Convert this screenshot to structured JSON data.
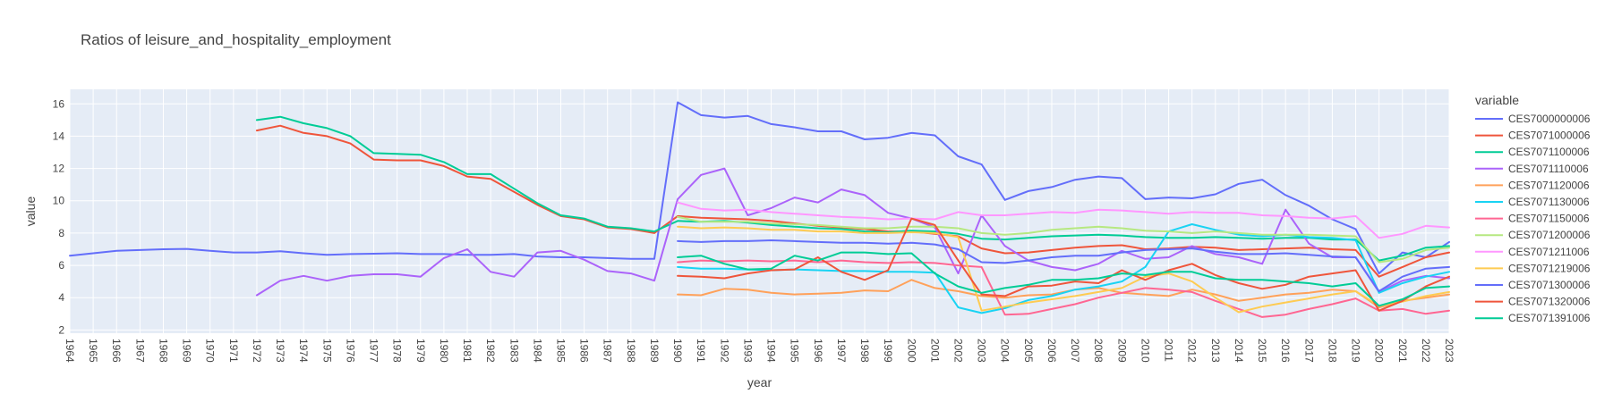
{
  "chart_data": {
    "type": "line",
    "title": "Ratios of leisure_and_hospitality_employment",
    "xlabel": "year",
    "ylabel": "value",
    "xlim": [
      1964,
      2023
    ],
    "ylim": [
      1.8,
      16.9
    ],
    "yticks": [
      2,
      4,
      6,
      8,
      10,
      12,
      14,
      16
    ],
    "grid": true,
    "legend": {
      "title": "variable",
      "placement": "right"
    },
    "series": [
      {
        "name": "CES7000000006",
        "color": "#636efa",
        "x": [
          1964,
          1965,
          1966,
          1967,
          1968,
          1969,
          1970,
          1971,
          1972,
          1973,
          1974,
          1975,
          1976,
          1977,
          1978,
          1979,
          1980,
          1981,
          1982,
          1983,
          1984,
          1985,
          1986,
          1987,
          1988,
          1989,
          1990,
          1991,
          1992,
          1993,
          1994,
          1995,
          1996,
          1997,
          1998,
          1999,
          2000,
          2001,
          2002,
          2003,
          2004,
          2005,
          2006,
          2007,
          2008,
          2009,
          2010,
          2011,
          2012,
          2013,
          2014,
          2015,
          2016,
          2017,
          2018,
          2019,
          2020,
          2021,
          2022,
          2023
        ],
        "y": [
          6.6,
          6.75,
          6.9,
          6.95,
          7.0,
          7.02,
          6.9,
          6.8,
          6.8,
          6.88,
          6.75,
          6.65,
          6.7,
          6.72,
          6.75,
          6.7,
          6.7,
          6.65,
          6.65,
          6.7,
          6.55,
          6.5,
          6.5,
          6.45,
          6.4,
          6.4,
          16.1,
          15.3,
          15.15,
          15.25,
          14.75,
          14.55,
          14.3,
          14.3,
          13.8,
          13.9,
          14.2,
          14.05,
          12.75,
          12.25,
          10.05,
          10.6,
          10.85,
          11.3,
          11.5,
          11.4,
          10.1,
          10.2,
          10.15,
          10.4,
          11.05,
          11.3,
          10.35,
          9.7,
          8.85,
          8.25,
          5.5,
          6.8,
          6.5,
          7.45
        ]
      },
      {
        "name": "CES7071000006",
        "color": "#EF553B",
        "x": [
          1972,
          1973,
          1974,
          1975,
          1976,
          1977,
          1978,
          1979,
          1980,
          1981,
          1982,
          1983,
          1984,
          1985,
          1986,
          1987,
          1988,
          1989,
          1990,
          1991,
          1992,
          1993,
          1994,
          1995,
          1996,
          1997,
          1998,
          1999,
          2000,
          2001,
          2002,
          2003,
          2004,
          2005,
          2006,
          2007,
          2008,
          2009,
          2010,
          2011,
          2012,
          2013,
          2014,
          2015,
          2016,
          2017,
          2018,
          2019,
          2020,
          2021,
          2022,
          2023
        ],
        "y": [
          14.35,
          14.65,
          14.2,
          14.0,
          13.55,
          12.55,
          12.5,
          12.5,
          12.15,
          11.5,
          11.35,
          10.55,
          9.75,
          9.05,
          8.85,
          8.35,
          8.25,
          8.0,
          9.05,
          8.95,
          8.9,
          8.85,
          8.75,
          8.6,
          8.45,
          8.35,
          8.25,
          8.1,
          8.1,
          7.95,
          7.8,
          7.05,
          6.75,
          6.8,
          6.95,
          7.1,
          7.2,
          7.25,
          7.0,
          7.05,
          7.15,
          7.1,
          6.95,
          7.0,
          7.05,
          7.1,
          7.0,
          6.95,
          5.3,
          5.9,
          6.5,
          6.8
        ]
      },
      {
        "name": "CES7071100006",
        "color": "#00cc96",
        "x": [
          1972,
          1973,
          1974,
          1975,
          1976,
          1977,
          1978,
          1979,
          1980,
          1981,
          1982,
          1983,
          1984,
          1985,
          1986,
          1987,
          1988,
          1989,
          1990,
          1991,
          1992,
          1993,
          1994,
          1995,
          1996,
          1997,
          1998,
          1999,
          2000,
          2001,
          2002,
          2003,
          2004,
          2005,
          2006,
          2007,
          2008,
          2009,
          2010,
          2011,
          2012,
          2013,
          2014,
          2015,
          2016,
          2017,
          2018,
          2019,
          2020,
          2021,
          2022,
          2023
        ],
        "y": [
          15.0,
          15.2,
          14.8,
          14.5,
          14.0,
          12.95,
          12.9,
          12.85,
          12.4,
          11.65,
          11.65,
          10.75,
          9.85,
          9.1,
          8.9,
          8.4,
          8.3,
          8.1,
          8.75,
          8.7,
          8.75,
          8.65,
          8.5,
          8.4,
          8.3,
          8.25,
          8.1,
          8.05,
          8.15,
          8.1,
          7.95,
          7.65,
          7.6,
          7.7,
          7.8,
          7.85,
          7.9,
          7.85,
          7.75,
          7.7,
          7.7,
          7.75,
          7.7,
          7.65,
          7.7,
          7.7,
          7.6,
          7.6,
          6.3,
          6.6,
          7.1,
          7.2
        ]
      },
      {
        "name": "CES7071110006",
        "color": "#ab63fa",
        "x": [
          1972,
          1973,
          1974,
          1975,
          1976,
          1977,
          1978,
          1979,
          1980,
          1981,
          1982,
          1983,
          1984,
          1985,
          1986,
          1987,
          1988,
          1989,
          1990,
          1991,
          1992,
          1993,
          1994,
          1995,
          1996,
          1997,
          1998,
          1999,
          2000,
          2001,
          2002,
          2003,
          2004,
          2005,
          2006,
          2007,
          2008,
          2009,
          2010,
          2011,
          2012,
          2013,
          2014,
          2015,
          2016,
          2017,
          2018,
          2019,
          2020,
          2021,
          2022,
          2023
        ],
        "y": [
          4.15,
          5.05,
          5.35,
          5.05,
          5.35,
          5.45,
          5.45,
          5.3,
          6.45,
          7.0,
          5.6,
          5.3,
          6.8,
          6.9,
          6.35,
          5.65,
          5.5,
          5.05,
          10.1,
          11.6,
          12.0,
          9.1,
          9.55,
          10.2,
          9.9,
          10.7,
          10.35,
          9.25,
          8.9,
          8.35,
          5.5,
          9.1,
          7.2,
          6.3,
          5.9,
          5.7,
          6.1,
          6.9,
          6.4,
          6.5,
          7.2,
          6.7,
          6.5,
          6.1,
          9.45,
          7.35,
          6.5,
          6.5,
          4.35,
          5.05,
          5.35,
          5.2
        ]
      },
      {
        "name": "CES7071120006",
        "color": "#FFA15A",
        "x": [
          1990,
          1991,
          1992,
          1993,
          1994,
          1995,
          1996,
          1997,
          1998,
          1999,
          2000,
          2001,
          2002,
          2003,
          2004,
          2005,
          2006,
          2007,
          2008,
          2009,
          2010,
          2011,
          2012,
          2013,
          2014,
          2015,
          2016,
          2017,
          2018,
          2019,
          2020,
          2021,
          2022,
          2023
        ],
        "y": [
          4.2,
          4.15,
          4.55,
          4.5,
          4.3,
          4.2,
          4.25,
          4.3,
          4.45,
          4.4,
          5.1,
          4.6,
          4.4,
          4.1,
          4.0,
          4.15,
          4.2,
          4.5,
          4.6,
          4.3,
          4.2,
          4.1,
          4.5,
          4.2,
          3.8,
          4.0,
          4.2,
          4.3,
          4.5,
          4.4,
          3.4,
          3.8,
          4.0,
          4.2
        ]
      },
      {
        "name": "CES7071130006",
        "color": "#19d3f3",
        "x": [
          1990,
          1991,
          1992,
          1993,
          1994,
          1995,
          1996,
          1997,
          1998,
          1999,
          2000,
          2001,
          2002,
          2003,
          2004,
          2005,
          2006,
          2007,
          2008,
          2009,
          2010,
          2011,
          2012,
          2013,
          2014,
          2015,
          2016,
          2017,
          2018,
          2019,
          2020,
          2021,
          2022,
          2023
        ],
        "y": [
          5.9,
          5.8,
          5.8,
          5.75,
          5.7,
          5.75,
          5.7,
          5.65,
          5.65,
          5.6,
          5.6,
          5.55,
          3.4,
          3.05,
          3.35,
          3.85,
          4.1,
          4.5,
          4.7,
          5.0,
          5.9,
          8.1,
          8.55,
          8.2,
          7.9,
          7.8,
          7.9,
          7.75,
          7.7,
          7.55,
          4.3,
          4.9,
          5.3,
          5.6
        ]
      },
      {
        "name": "CES7071150006",
        "color": "#FF6692",
        "x": [
          1990,
          1991,
          1992,
          1993,
          1994,
          1995,
          1996,
          1997,
          1998,
          1999,
          2000,
          2001,
          2002,
          2003,
          2004,
          2005,
          2006,
          2007,
          2008,
          2009,
          2010,
          2011,
          2012,
          2013,
          2014,
          2015,
          2016,
          2017,
          2018,
          2019,
          2020,
          2021,
          2022,
          2023
        ],
        "y": [
          6.2,
          6.3,
          6.25,
          6.3,
          6.25,
          6.3,
          6.2,
          6.3,
          6.2,
          6.15,
          6.2,
          6.15,
          6.0,
          5.9,
          2.95,
          3.0,
          3.3,
          3.6,
          4.0,
          4.3,
          4.6,
          4.5,
          4.35,
          3.8,
          3.3,
          2.8,
          2.95,
          3.3,
          3.6,
          3.95,
          3.2,
          3.3,
          3.0,
          3.2
        ]
      },
      {
        "name": "CES7071200006",
        "color": "#B6E880",
        "x": [
          1990,
          1991,
          1992,
          1993,
          1994,
          1995,
          1996,
          1997,
          1998,
          1999,
          2000,
          2001,
          2002,
          2003,
          2004,
          2005,
          2006,
          2007,
          2008,
          2009,
          2010,
          2011,
          2012,
          2013,
          2014,
          2015,
          2016,
          2017,
          2018,
          2019,
          2020,
          2021,
          2022,
          2023
        ],
        "y": [
          9.0,
          8.7,
          8.7,
          8.7,
          8.6,
          8.55,
          8.5,
          8.4,
          8.3,
          8.3,
          8.4,
          8.4,
          8.3,
          8.0,
          7.9,
          8.0,
          8.2,
          8.3,
          8.4,
          8.3,
          8.15,
          8.1,
          8.0,
          8.1,
          8.0,
          7.9,
          7.9,
          7.9,
          7.85,
          7.8,
          6.2,
          6.4,
          6.95,
          7.1
        ]
      },
      {
        "name": "CES7071211006",
        "color": "#FF97FF",
        "x": [
          1990,
          1991,
          1992,
          1993,
          1994,
          1995,
          1996,
          1997,
          1998,
          1999,
          2000,
          2001,
          2002,
          2003,
          2004,
          2005,
          2006,
          2007,
          2008,
          2009,
          2010,
          2011,
          2012,
          2013,
          2014,
          2015,
          2016,
          2017,
          2018,
          2019,
          2020,
          2021,
          2022,
          2023
        ],
        "y": [
          9.9,
          9.5,
          9.4,
          9.45,
          9.3,
          9.2,
          9.1,
          9.0,
          8.95,
          8.85,
          8.9,
          8.85,
          9.3,
          9.1,
          9.1,
          9.2,
          9.3,
          9.25,
          9.45,
          9.4,
          9.3,
          9.2,
          9.3,
          9.25,
          9.25,
          9.1,
          9.05,
          8.95,
          8.9,
          9.05,
          7.7,
          7.95,
          8.45,
          8.35
        ]
      },
      {
        "name": "CES7071219006",
        "color": "#FECB52",
        "x": [
          1990,
          1991,
          1992,
          1993,
          1994,
          1995,
          1996,
          1997,
          1998,
          1999,
          2000,
          2001,
          2002,
          2003,
          2004,
          2005,
          2006,
          2007,
          2008,
          2009,
          2010,
          2011,
          2012,
          2013,
          2014,
          2015,
          2016,
          2017,
          2018,
          2019,
          2020,
          2021,
          2022,
          2023
        ],
        "y": [
          8.4,
          8.3,
          8.35,
          8.3,
          8.2,
          8.2,
          8.1,
          8.1,
          8.0,
          8.0,
          8.05,
          8.0,
          7.75,
          3.2,
          3.45,
          3.7,
          3.9,
          4.1,
          4.35,
          4.6,
          5.3,
          5.5,
          5.0,
          4.0,
          3.1,
          3.45,
          3.7,
          3.95,
          4.2,
          4.4,
          3.5,
          3.75,
          4.1,
          4.35
        ]
      },
      {
        "name": "CES7071300006",
        "color": "#636efa",
        "x": [
          1990,
          1991,
          1992,
          1993,
          1994,
          1995,
          1996,
          1997,
          1998,
          1999,
          2000,
          2001,
          2002,
          2003,
          2004,
          2005,
          2006,
          2007,
          2008,
          2009,
          2010,
          2011,
          2012,
          2013,
          2014,
          2015,
          2016,
          2017,
          2018,
          2019,
          2020,
          2021,
          2022,
          2023
        ],
        "y": [
          7.5,
          7.45,
          7.5,
          7.5,
          7.55,
          7.5,
          7.45,
          7.4,
          7.4,
          7.35,
          7.4,
          7.3,
          7.0,
          6.2,
          6.15,
          6.3,
          6.5,
          6.6,
          6.6,
          6.8,
          6.95,
          7.0,
          7.05,
          6.85,
          6.7,
          6.7,
          6.75,
          6.65,
          6.55,
          6.5,
          4.4,
          5.3,
          5.8,
          5.9
        ]
      },
      {
        "name": "CES7071320006",
        "color": "#EF553B",
        "x": [
          1990,
          1991,
          1992,
          1993,
          1994,
          1995,
          1996,
          1997,
          1998,
          1999,
          2000,
          2001,
          2002,
          2003,
          2004,
          2005,
          2006,
          2007,
          2008,
          2009,
          2010,
          2011,
          2012,
          2013,
          2014,
          2015,
          2016,
          2017,
          2018,
          2019,
          2020,
          2021,
          2022,
          2023
        ],
        "y": [
          5.35,
          5.3,
          5.2,
          5.5,
          5.7,
          5.75,
          6.5,
          5.6,
          5.1,
          5.7,
          8.9,
          8.5,
          6.3,
          4.2,
          4.1,
          4.7,
          4.75,
          5.0,
          4.9,
          5.7,
          5.1,
          5.7,
          6.1,
          5.4,
          4.9,
          4.55,
          4.8,
          5.3,
          5.5,
          5.7,
          3.2,
          3.8,
          4.7,
          5.3
        ]
      },
      {
        "name": "CES7071391006",
        "color": "#00cc96",
        "x": [
          1990,
          1991,
          1992,
          1993,
          1994,
          1995,
          1996,
          1997,
          1998,
          1999,
          2000,
          2001,
          2002,
          2003,
          2004,
          2005,
          2006,
          2007,
          2008,
          2009,
          2010,
          2011,
          2012,
          2013,
          2014,
          2015,
          2016,
          2017,
          2018,
          2019,
          2020,
          2021,
          2022,
          2023
        ],
        "y": [
          6.5,
          6.6,
          6.1,
          5.75,
          5.8,
          6.6,
          6.3,
          6.8,
          6.8,
          6.7,
          6.75,
          5.5,
          4.7,
          4.3,
          4.6,
          4.8,
          5.1,
          5.1,
          5.2,
          5.5,
          5.4,
          5.6,
          5.6,
          5.2,
          5.1,
          5.1,
          5.0,
          4.9,
          4.7,
          4.9,
          3.5,
          3.9,
          4.6,
          4.7
        ]
      }
    ]
  }
}
